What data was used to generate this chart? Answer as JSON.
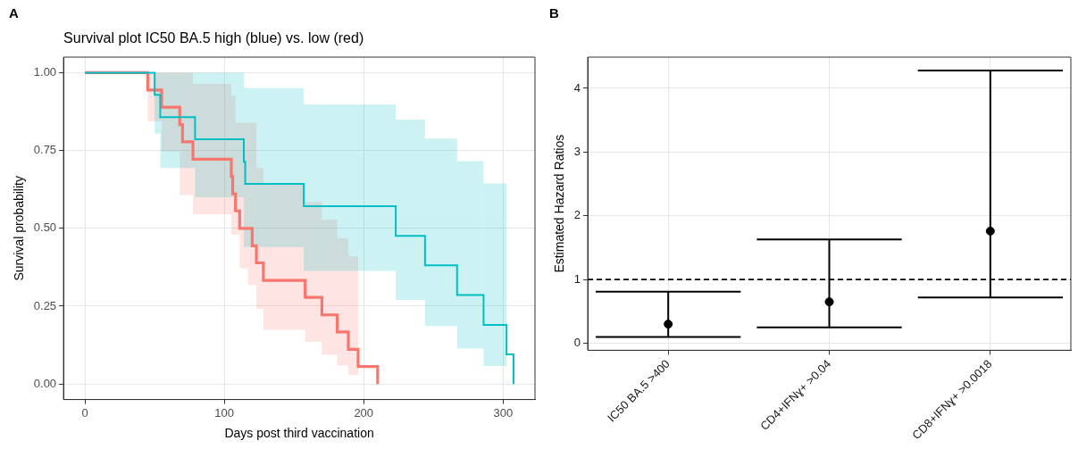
{
  "chart_data": [
    {
      "type": "step",
      "title": "Survival plot IC50 BA.5 high (blue) vs. low (red)",
      "xlabel": "Days post third vaccination",
      "ylabel": "Survival probability",
      "annotations": [
        "A"
      ],
      "xlim": [
        -15.4,
        322.9
      ],
      "ylim": [
        -0.05,
        1.05
      ],
      "xticks": [
        0,
        100,
        200,
        300
      ],
      "yticks": [
        {
          "value": 0,
          "label": "0.00"
        },
        {
          "value": 0.25,
          "label": "0.25"
        },
        {
          "value": 0.5,
          "label": "0.50"
        },
        {
          "value": 0.75,
          "label": "0.75"
        },
        {
          "value": 1,
          "label": "1.00"
        }
      ],
      "grid": true,
      "legend": false,
      "marker": "none",
      "line_style": "solid",
      "series": [
        {
          "color": "#f8766d",
          "x": [
            0,
            45,
            55,
            68,
            70,
            77.5,
            105,
            106,
            108,
            111,
            117,
            120,
            123,
            128,
            158,
            170,
            181,
            189,
            196,
            210
          ],
          "values": [
            1,
            0.944,
            0.889,
            0.833,
            0.778,
            0.722,
            0.667,
            0.611,
            0.556,
            0.5,
            0.5,
            0.444,
            0.389,
            0.333,
            0.278,
            0.222,
            0.167,
            0.111,
            0.056,
            0
          ],
          "lower": [
            null,
            0.844,
            0.747,
            0.607,
            0.607,
            0.545,
            0.48,
            0.48,
            0.48,
            0.372,
            0.318,
            0.318,
            0.241,
            0.174,
            0.135,
            0.094,
            0.06,
            0.029,
            0.029,
            null
          ],
          "upper": [
            null,
            1,
            1,
            1,
            1,
            0.964,
            0.926,
            0.926,
            0.839,
            0.839,
            0.839,
            0.839,
            0.694,
            0.643,
            0.585,
            0.528,
            0.468,
            0.41,
            0.41,
            null
          ]
        },
        {
          "color": "#00bfc4",
          "x": [
            0,
            50,
            54,
            79,
            114,
            115,
            157,
            223,
            244,
            267,
            286,
            302.5,
            307.5
          ],
          "values": [
            1,
            0.929,
            0.857,
            0.786,
            0.714,
            0.643,
            0.571,
            0.476,
            0.381,
            0.286,
            0.19,
            0.095,
            0
          ],
          "lower": [
            null,
            0.805,
            0.694,
            0.6,
            0.44,
            0.44,
            0.363,
            0.27,
            0.186,
            0.114,
            0.058,
            0.058,
            null
          ],
          "upper": [
            null,
            1,
            1,
            1,
            0.95,
            0.95,
            0.898,
            0.849,
            0.788,
            0.716,
            0.644,
            0.644,
            null
          ]
        }
      ]
    },
    {
      "type": "scatter",
      "ylabel": "Estimated Hazard Ratios",
      "annotations": [
        "B"
      ],
      "categories": [
        "IC50 BA.5 >400",
        "CD4+IFNɣ+ >0.04",
        "CD8+IFNɣ+ >0.0018"
      ],
      "values": [
        0.3,
        0.65,
        1.76
      ],
      "errors": [
        [
          0.1,
          0.81
        ],
        [
          0.25,
          1.63
        ],
        [
          0.72,
          4.28
        ]
      ],
      "color": "#000000",
      "ylim": [
        -0.11,
        4.49
      ],
      "yticks": [
        0,
        1,
        2,
        3,
        4
      ],
      "ref_lines": [
        {
          "axis": "y",
          "value": 1,
          "line_style": "dashed",
          "color": "#000000"
        }
      ],
      "grid": true,
      "legend": false,
      "marker": "circle"
    }
  ]
}
